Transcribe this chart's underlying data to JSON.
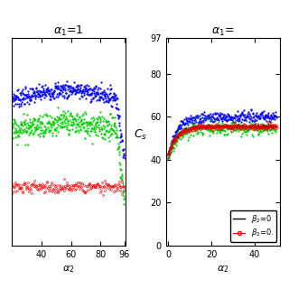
{
  "title_left": "α_1=1",
  "title_right": "α_1=",
  "xlabel": "α_2",
  "ylabel": "C_s",
  "legend_entries": [
    "β_2=0",
    "β_2=0."
  ],
  "left_xlim": [
    20,
    97
  ],
  "left_xticks": [
    40,
    60,
    80,
    96
  ],
  "left_ylim": [
    28,
    78
  ],
  "right_xlim": [
    -1,
    52
  ],
  "right_xticks": [
    0,
    20,
    40
  ],
  "right_ylim": [
    0,
    97
  ],
  "right_yticks": [
    0,
    20,
    40,
    60,
    80,
    97
  ],
  "colors": {
    "blue": "#0000ee",
    "green": "#00cc00",
    "red": "#ee0000",
    "black": "#000000"
  }
}
